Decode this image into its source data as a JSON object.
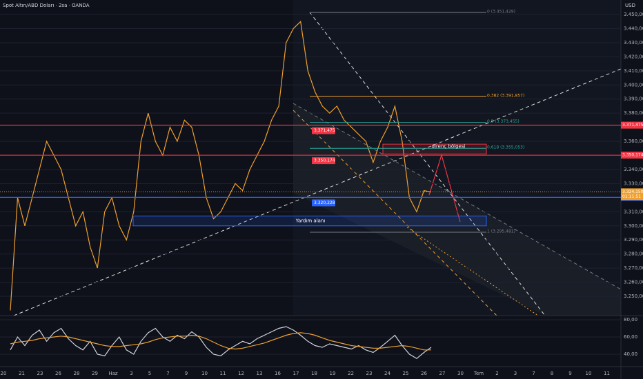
{
  "chart_data": [
    {
      "type": "line",
      "title": "Spot Altın/ABD Doları · 2sa · OANDA",
      "currency": "USD",
      "x_labels": [
        "20",
        "21",
        "23",
        "26",
        "28",
        "29",
        "Haz",
        "3",
        "5",
        "7",
        "9",
        "10",
        "11",
        "12",
        "13",
        "16",
        "17",
        "18",
        "19",
        "22",
        "23",
        "24",
        "25",
        "26",
        "27",
        "30",
        "Tem",
        "2",
        "3",
        "7",
        "8",
        "9",
        "10",
        "11"
      ],
      "series": [
        {
          "color": "#f0a030",
          "values": [
            3240,
            3320,
            3300,
            3320,
            3340,
            3360,
            3350,
            3340,
            3320,
            3300,
            3310,
            3285,
            3270,
            3310,
            3320,
            3300,
            3290,
            3310,
            3360,
            3380,
            3360,
            3350,
            3370,
            3360,
            3375,
            3370,
            3350,
            3320,
            3305,
            3310,
            3320,
            3330,
            3325,
            3340,
            3350,
            3360,
            3375,
            3385,
            3430,
            3440,
            3445,
            3410,
            3395,
            3385,
            3380,
            3385,
            3375,
            3370,
            3365,
            3360,
            3345,
            3360,
            3370,
            3385,
            3360,
            3320,
            3310,
            3325,
            3324
          ]
        }
      ],
      "ylim": [
        3236.3,
        3460.3
      ],
      "yticks": [
        {
          "value": 3250,
          "label": "3.250,000"
        },
        {
          "value": 3260,
          "label": "3.260,000"
        },
        {
          "value": 3270,
          "label": "3.270,000"
        },
        {
          "value": 3280,
          "label": "3.280,000"
        },
        {
          "value": 3290,
          "label": "3.290,000"
        },
        {
          "value": 3300,
          "label": "3.300,000"
        },
        {
          "value": 3310,
          "label": "3.310,000"
        },
        {
          "value": 3330,
          "label": "3.330,000"
        },
        {
          "value": 3340,
          "label": "3.340,000"
        },
        {
          "value": 3360,
          "label": "3.360,000"
        },
        {
          "value": 3380,
          "label": "3.380,000"
        },
        {
          "value": 3390,
          "label": "3.390,000"
        },
        {
          "value": 3400,
          "label": "3.400,000"
        },
        {
          "value": 3410,
          "label": "3.410,000"
        },
        {
          "value": 3420,
          "label": "3.420,000"
        },
        {
          "value": 3430,
          "label": "3.430,000"
        },
        {
          "value": 3440,
          "label": "3.440,000"
        },
        {
          "value": 3450,
          "label": "3.450,000"
        }
      ],
      "levels": [
        {
          "value": 3371.475,
          "label": "3.371,475",
          "color": "#f23645"
        },
        {
          "value": 3350.174,
          "label": "3.350,174",
          "color": "#f23645"
        },
        {
          "value": 3320.228,
          "label": "3.320,228",
          "color": "#2962ff"
        }
      ],
      "fibonacci": [
        {
          "value": 3451.429,
          "label": "0 (3.451,429)",
          "color": "#787b86"
        },
        {
          "value": 3391.857,
          "label": "0,382 (3.391,857)",
          "color": "#f0a030"
        },
        {
          "value": 3373.455,
          "label": "0,5 (3.373,455)",
          "color": "#26a69a"
        },
        {
          "value": 3355.053,
          "label": "0,618 (3.355,053)",
          "color": "#26a69a"
        },
        {
          "value": 3295.481,
          "label": "1 (3.295,481)",
          "color": "#787b86"
        }
      ],
      "zones": [
        {
          "label": "direnç bölgesi",
          "range": [
            3351,
            3358
          ],
          "color": "#f23645"
        },
        {
          "label": "Yardım alanı",
          "range": [
            3300,
            3307
          ],
          "color": "#2962ff"
        }
      ],
      "price_badge": {
        "value": 3324.15,
        "label": "3.324,150",
        "countdown": "01:11:51"
      }
    },
    {
      "type": "line",
      "ylim": [
        33.6,
        83.2
      ],
      "yticks": [
        {
          "value": 80,
          "label": "80,00"
        },
        {
          "value": 60,
          "label": "60,00"
        },
        {
          "value": 40,
          "label": "40,00"
        }
      ],
      "series": [
        {
          "color": "#d1d4dc",
          "values": [
            45,
            60,
            50,
            62,
            68,
            55,
            65,
            70,
            58,
            50,
            45,
            55,
            40,
            38,
            50,
            60,
            45,
            40,
            55,
            65,
            70,
            60,
            55,
            62,
            58,
            66,
            60,
            48,
            40,
            38,
            45,
            50,
            55,
            52,
            58,
            62,
            66,
            70,
            72,
            68,
            62,
            55,
            50,
            48,
            52,
            50,
            48,
            46,
            50,
            45,
            42,
            48,
            55,
            62,
            50,
            40,
            35,
            42,
            48
          ]
        },
        {
          "color": "#f0a030",
          "values": [
            52,
            54,
            55,
            56,
            58,
            59,
            60,
            61,
            60,
            58,
            56,
            54,
            52,
            50,
            49,
            49,
            50,
            51,
            52,
            54,
            57,
            59,
            60,
            61,
            61,
            62,
            61,
            58,
            54,
            50,
            47,
            46,
            47,
            49,
            51,
            53,
            56,
            59,
            62,
            64,
            65,
            64,
            62,
            59,
            56,
            54,
            52,
            50,
            49,
            48,
            47,
            47,
            48,
            49,
            50,
            49,
            47,
            45,
            45
          ]
        }
      ]
    }
  ]
}
